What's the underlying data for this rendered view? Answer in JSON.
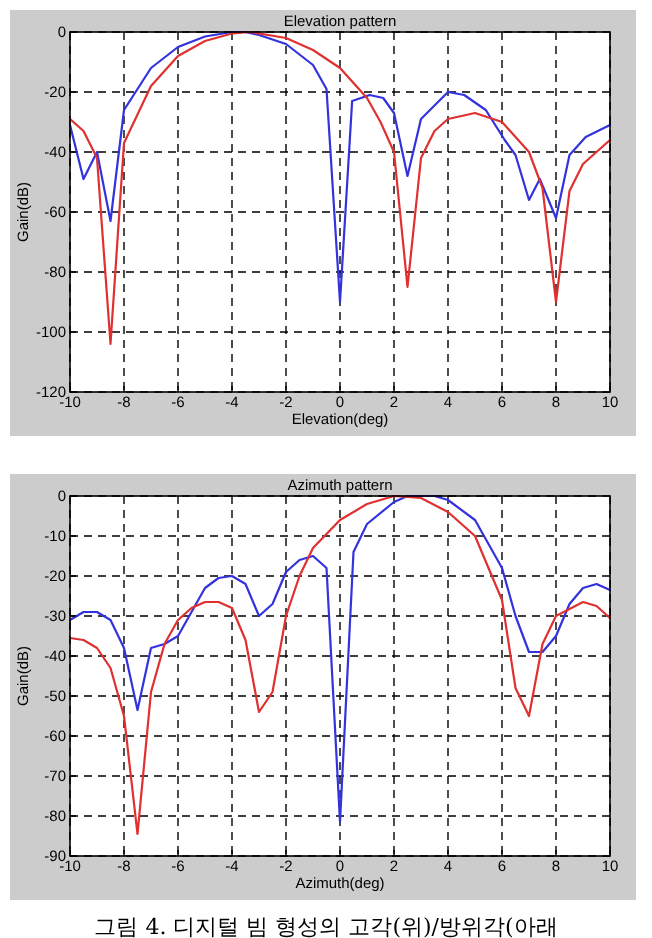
{
  "chart_data": [
    {
      "type": "line",
      "title": "Elevation pattern",
      "xlabel": "Elevation(deg)",
      "ylabel": "Gain(dB)",
      "xlim": [
        -10,
        10
      ],
      "ylim": [
        -120,
        0
      ],
      "xticks": [
        -10,
        -8,
        -6,
        -4,
        -2,
        0,
        2,
        4,
        6,
        8,
        10
      ],
      "yticks": [
        -120,
        -100,
        -80,
        -60,
        -40,
        -20,
        0
      ],
      "grid": true,
      "line_style": "solid",
      "series": [
        {
          "color": "#3333dd",
          "x": [
            -10,
            -9.5,
            -9,
            -8.5,
            -8,
            -7,
            -6,
            -5,
            -4,
            -3.5,
            -3,
            -2,
            -1,
            -0.5,
            0,
            0.45,
            1.1,
            1.6,
            2,
            2.5,
            3,
            4,
            4.6,
            5.4,
            6.1,
            6.5,
            7,
            7.4,
            8,
            8.5,
            9.1,
            10
          ],
          "values": [
            -31,
            -49,
            -40,
            -63,
            -26,
            -12,
            -5,
            -1.5,
            0,
            0,
            -1,
            -4,
            -11,
            -19,
            -90,
            -23,
            -21,
            -22,
            -27,
            -48,
            -29,
            -20,
            -21,
            -26,
            -36,
            -41,
            -56,
            -49,
            -62,
            -41,
            -35,
            -31
          ]
        },
        {
          "color": "#e03030",
          "x": [
            -10,
            -9.5,
            -9,
            -8.5,
            -8,
            -7,
            -6,
            -5,
            -4,
            -3.3,
            -2,
            -1,
            0,
            1,
            1.5,
            2,
            2.5,
            3,
            3.5,
            4,
            5,
            6,
            7,
            7.5,
            8,
            8.5,
            9,
            10
          ],
          "values": [
            -29,
            -33,
            -42,
            -104,
            -37,
            -18,
            -8,
            -3,
            -0.5,
            0,
            -2,
            -6,
            -12,
            -22,
            -30,
            -40,
            -85,
            -42,
            -33,
            -29,
            -27,
            -30,
            -40,
            -52,
            -90,
            -53,
            -44,
            -36
          ]
        }
      ]
    },
    {
      "type": "line",
      "title": "Azimuth pattern",
      "xlabel": "Azimuth(deg)",
      "ylabel": "Gain(dB)",
      "xlim": [
        -10,
        10
      ],
      "ylim": [
        -90,
        0
      ],
      "xticks": [
        -10,
        -8,
        -6,
        -4,
        -2,
        0,
        2,
        4,
        6,
        8,
        10
      ],
      "yticks": [
        -90,
        -80,
        -70,
        -60,
        -50,
        -40,
        -30,
        -20,
        -10,
        0
      ],
      "grid": true,
      "line_style": "solid",
      "annotations": [
        "그림 4. 디지털 빔 형성의 고각(위)/방위각(아래"
      ],
      "series": [
        {
          "color": "#3333dd",
          "x": [
            -10,
            -9.5,
            -9,
            -8.5,
            -8,
            -7.5,
            -7,
            -6.5,
            -6,
            -5.5,
            -5,
            -4.5,
            -4,
            -3.5,
            -3,
            -2.5,
            -2,
            -1.5,
            -1,
            -0.5,
            0,
            0.5,
            1,
            2,
            2.5,
            3.5,
            4,
            5,
            6,
            6.5,
            7,
            7.5,
            8,
            8.5,
            9,
            9.5,
            10
          ],
          "values": [
            -31,
            -29,
            -29,
            -31,
            -38,
            -53.5,
            -38,
            -37,
            -35,
            -29,
            -23,
            -20.5,
            -20,
            -22,
            -30,
            -27,
            -19,
            -16,
            -15,
            -18,
            -81.5,
            -14,
            -7,
            -1.5,
            0,
            0,
            -1,
            -6,
            -18,
            -30,
            -39,
            -39,
            -35,
            -27,
            -23,
            -22,
            -23.5
          ]
        },
        {
          "color": "#e03030",
          "x": [
            -10,
            -9.5,
            -9,
            -8.5,
            -8,
            -7.5,
            -7,
            -6.5,
            -6,
            -5.5,
            -5,
            -4.5,
            -4,
            -3.5,
            -3,
            -2.5,
            -2,
            -1.5,
            -1,
            0,
            1,
            2,
            3,
            4,
            5,
            6,
            6.5,
            7,
            7.5,
            8,
            9,
            9.5,
            10
          ],
          "values": [
            -35.5,
            -36,
            -38,
            -43,
            -55,
            -84.5,
            -49,
            -37,
            -31,
            -28,
            -26.5,
            -26.5,
            -28,
            -36,
            -54,
            -49,
            -30,
            -20,
            -13,
            -6,
            -2,
            0,
            -0.5,
            -4,
            -10,
            -26,
            -48,
            -55,
            -37,
            -30,
            -26.5,
            -27.5,
            -30.5
          ]
        }
      ]
    }
  ]
}
